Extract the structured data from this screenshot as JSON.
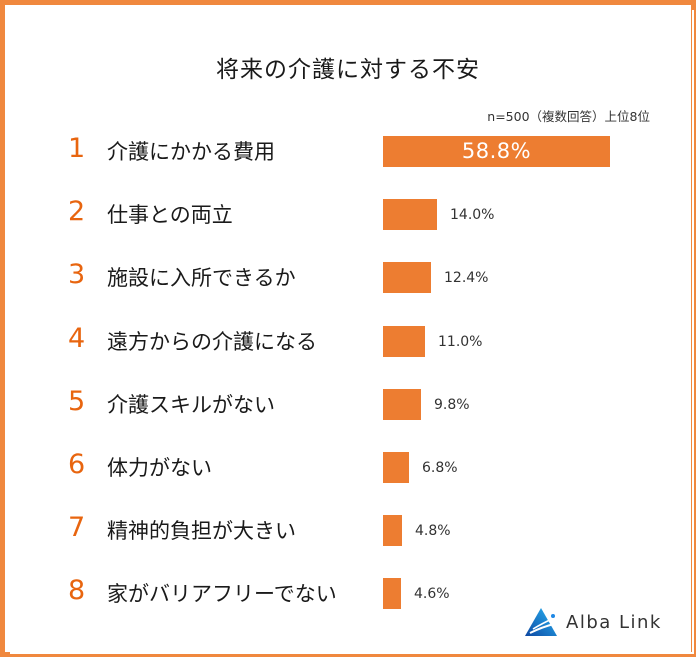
{
  "title": "将来の介護に対する不安",
  "note": "n=500（複数回答）上位8位",
  "brand": {
    "name": "Alba Link",
    "icon": "alba-link-logo-icon"
  },
  "colors": {
    "bar": "#ED7D31",
    "rank": "#E8650F",
    "border": "#F0883E",
    "logo": "#1E88E5"
  },
  "rows": [
    {
      "rank": "1",
      "label": "介護にかかる費用",
      "value": "58.8%"
    },
    {
      "rank": "2",
      "label": "仕事との両立",
      "value": "14.0%"
    },
    {
      "rank": "3",
      "label": "施設に入所できるか",
      "value": "12.4%"
    },
    {
      "rank": "4",
      "label": "遠方からの介護になる",
      "value": "11.0%"
    },
    {
      "rank": "5",
      "label": "介護スキルがない",
      "value": "9.8%"
    },
    {
      "rank": "6",
      "label": "体力がない",
      "value": "6.8%"
    },
    {
      "rank": "7",
      "label": "精神的負担が大きい",
      "value": "4.8%"
    },
    {
      "rank": "8",
      "label": "家がバリアフリーでない",
      "value": "4.6%"
    }
  ],
  "chart_data": {
    "type": "bar",
    "orientation": "horizontal",
    "title": "将来の介護に対する不安",
    "subtitle": "n=500（複数回答）上位8位",
    "categories": [
      "介護にかかる費用",
      "仕事との両立",
      "施設に入所できるか",
      "遠方からの介護になる",
      "介護スキルがない",
      "体力がない",
      "精神的負担が大きい",
      "家がバリアフリーでない"
    ],
    "values": [
      58.8,
      14.0,
      12.4,
      11.0,
      9.8,
      6.8,
      4.8,
      4.6
    ],
    "unit": "%",
    "xlabel": "",
    "ylabel": "",
    "grid": false,
    "legend": null
  }
}
